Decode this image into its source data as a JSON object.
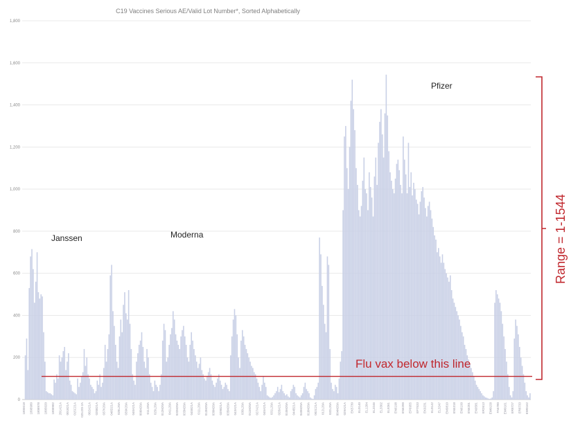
{
  "chart_data": {
    "type": "bar",
    "title": "C19 Vaccines Serious AE/Valid Lot Number*, Sorted Alphabetically",
    "ylim": [
      0,
      1800
    ],
    "yticks": [
      "0",
      "200",
      "400",
      "600",
      "800",
      "1,000",
      "1,200",
      "1,400",
      "1,600",
      "1,800"
    ],
    "grid": true,
    "color": "#c9d0e6",
    "x_tick_labels": [
      "1805018",
      "1808980",
      "1808978",
      "1805020",
      "1808982",
      "201A21A",
      "001B21A",
      "015C21A",
      "025J20-2A",
      "002A21A",
      "020B21A",
      "037K20A",
      "048D21A",
      "028L20A",
      "039K20A",
      "040A21A",
      "006M20A",
      "011J20A",
      "029L20A",
      "012M20A",
      "041L20A",
      "032M20A",
      "033M20A",
      "045B21A",
      "011L20A",
      "013M20A",
      "030M20A",
      "039B21A",
      "035M20A",
      "043A21A",
      "030L20A",
      "011M20A",
      "027A21A",
      "045A21A",
      "031L20A",
      "028A21A",
      "010M20A",
      "044B21A",
      "040M20A",
      "016M20A",
      "002C21A",
      "012L20A",
      "032L20A",
      "004M20A",
      "029A21A",
      "EK5730",
      "EL0140",
      "EL1284",
      "EL3246",
      "EL3302",
      "EL9261",
      "EN6198",
      "EN6200",
      "EP6955",
      "EP7533",
      "EK9231",
      "EL0142",
      "EL3247",
      "EM9810",
      "EN5318",
      "EN6199",
      "EN6201",
      "EN9581",
      "ER2613",
      "EW0158",
      "FA6780",
      "EW0161",
      "ER8727",
      "ER8733",
      "EW0162"
    ],
    "groups": [
      {
        "name": "Janssen",
        "bar_start": 2,
        "bar_end": 14
      },
      {
        "name": "Moderna",
        "bar_start": 14,
        "bar_end": 185
      },
      {
        "name": "Pfizer",
        "bar_start": 185,
        "bar_end": 312
      }
    ],
    "reference_line": {
      "value": 110,
      "label": "Flu vax below this line"
    },
    "range_annotation": "Range = 1-1544",
    "values": [
      0,
      0,
      210,
      290,
      140,
      530,
      680,
      715,
      620,
      460,
      560,
      700,
      510,
      480,
      500,
      490,
      320,
      180,
      40,
      35,
      30,
      30,
      25,
      20,
      95,
      80,
      120,
      100,
      210,
      180,
      200,
      230,
      250,
      140,
      180,
      220,
      90,
      70,
      40,
      35,
      30,
      25,
      100,
      60,
      80,
      110,
      130,
      240,
      160,
      200,
      120,
      100,
      70,
      60,
      50,
      30,
      40,
      90,
      70,
      120,
      60,
      80,
      150,
      260,
      180,
      240,
      310,
      590,
      640,
      420,
      350,
      260,
      180,
      150,
      300,
      380,
      320,
      450,
      510,
      410,
      380,
      520,
      360,
      240,
      120,
      90,
      70,
      180,
      220,
      260,
      280,
      320,
      250,
      180,
      150,
      240,
      200,
      120,
      80,
      60,
      40,
      90,
      70,
      60,
      40,
      70,
      120,
      280,
      360,
      330,
      180,
      200,
      260,
      310,
      340,
      420,
      380,
      310,
      280,
      260,
      240,
      300,
      330,
      350,
      300,
      260,
      200,
      180,
      260,
      320,
      280,
      240,
      210,
      180,
      150,
      170,
      200,
      140,
      120,
      100,
      90,
      110,
      130,
      150,
      120,
      90,
      70,
      60,
      80,
      100,
      120,
      90,
      70,
      50,
      60,
      80,
      70,
      50,
      40,
      210,
      300,
      380,
      430,
      400,
      310,
      200,
      150,
      280,
      330,
      300,
      260,
      240,
      220,
      200,
      180,
      160,
      150,
      130,
      120,
      100,
      80,
      60,
      40,
      70,
      110,
      80,
      60,
      20,
      15,
      10,
      8,
      12,
      20,
      30,
      40,
      60,
      35,
      50,
      70,
      40,
      30,
      20,
      25,
      15,
      10,
      40,
      50,
      70,
      60,
      30,
      20,
      15,
      10,
      20,
      30,
      60,
      80,
      50,
      40,
      30,
      10,
      5,
      3,
      20,
      50,
      60,
      80,
      770,
      690,
      540,
      450,
      360,
      320,
      680,
      640,
      240,
      80,
      50,
      40,
      70,
      60,
      30,
      100,
      180,
      230,
      900,
      1250,
      1300,
      1100,
      1000,
      1200,
      1420,
      1520,
      1380,
      1280,
      1100,
      1020,
      900,
      870,
      920,
      1040,
      1150,
      1000,
      980,
      900,
      1080,
      1010,
      960,
      870,
      1060,
      1150,
      1020,
      1220,
      1320,
      1380,
      1260,
      1150,
      1360,
      1544,
      1350,
      1180,
      1080,
      1040,
      1000,
      980,
      1050,
      1120,
      1140,
      1090,
      1020,
      980,
      1250,
      1140,
      1070,
      980,
      1220,
      1010,
      1080,
      970,
      1030,
      1000,
      950,
      930,
      880,
      940,
      990,
      1010,
      960,
      910,
      870,
      920,
      940,
      900,
      860,
      820,
      780,
      760,
      700,
      720,
      680,
      650,
      690,
      650,
      620,
      600,
      580,
      560,
      590,
      520,
      480,
      460,
      440,
      420,
      400,
      380,
      350,
      320,
      300,
      260,
      240,
      210,
      190,
      170,
      150,
      130,
      110,
      90,
      70,
      60,
      50,
      40,
      30,
      20,
      15,
      10,
      8,
      5,
      3,
      5,
      10,
      40,
      460,
      520,
      500,
      480,
      460,
      420,
      360,
      300,
      240,
      180,
      120,
      60,
      20,
      10,
      40,
      290,
      380,
      350,
      310,
      250,
      200,
      160,
      120,
      80,
      40,
      20,
      10,
      30
    ]
  }
}
